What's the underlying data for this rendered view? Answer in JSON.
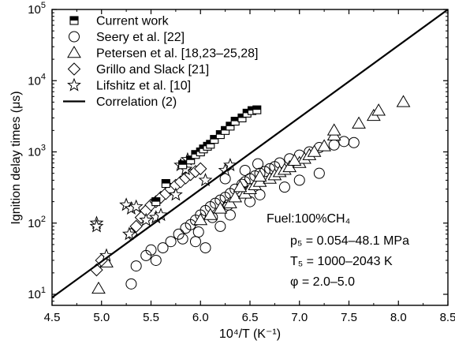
{
  "chart_data": {
    "type": "scatter",
    "xlabel": "10⁴/T (K⁻¹)",
    "ylabel": "Ignition delay times (μs)",
    "xlim": [
      4.5,
      8.5
    ],
    "ylim": [
      7,
      100000
    ],
    "yscale": "log",
    "grid": false,
    "legend_position": "top-left",
    "x_ticks": [
      "4.5",
      "5.0",
      "5.5",
      "6.0",
      "6.5",
      "7.0",
      "7.5",
      "8.0",
      "8.5"
    ],
    "y_ticks": [
      {
        "base": "10",
        "exp": "1"
      },
      {
        "base": "10",
        "exp": "2"
      },
      {
        "base": "10",
        "exp": "3"
      },
      {
        "base": "10",
        "exp": "4"
      },
      {
        "base": "10",
        "exp": "5"
      }
    ],
    "annotations": {
      "fuel": "Fuel:100%CH₄",
      "pressure": "p₅ = 0.054–48.1 MPa",
      "temperature": "T₅ = 1000–2043 K",
      "phi": "φ = 2.0–5.0"
    },
    "series": [
      {
        "name": "Current work",
        "marker": "half-filled-square",
        "points": [
          [
            5.55,
            200
          ],
          [
            5.65,
            360
          ],
          [
            5.82,
            660
          ],
          [
            5.9,
            770
          ],
          [
            5.95,
            920
          ],
          [
            6.0,
            1000
          ],
          [
            6.03,
            1100
          ],
          [
            6.07,
            1200
          ],
          [
            6.1,
            1280
          ],
          [
            6.14,
            1500
          ],
          [
            6.2,
            1750
          ],
          [
            6.25,
            2000
          ],
          [
            6.3,
            2300
          ],
          [
            6.35,
            2700
          ],
          [
            6.42,
            3000
          ],
          [
            6.47,
            3500
          ],
          [
            6.52,
            3800
          ],
          [
            6.57,
            3900
          ]
        ]
      },
      {
        "name": "Seery et al. [22]",
        "marker": "circle",
        "points": [
          [
            5.3,
            14
          ],
          [
            5.35,
            25
          ],
          [
            5.45,
            35
          ],
          [
            5.5,
            42
          ],
          [
            5.55,
            30
          ],
          [
            5.62,
            45
          ],
          [
            5.7,
            55
          ],
          [
            5.78,
            70
          ],
          [
            5.82,
            60
          ],
          [
            5.85,
            85
          ],
          [
            5.9,
            95
          ],
          [
            5.95,
            110
          ],
          [
            5.98,
            75
          ],
          [
            6.0,
            130
          ],
          [
            6.05,
            150
          ],
          [
            6.1,
            170
          ],
          [
            6.12,
            120
          ],
          [
            6.15,
            190
          ],
          [
            6.2,
            210
          ],
          [
            6.25,
            230
          ],
          [
            6.28,
            180
          ],
          [
            6.3,
            260
          ],
          [
            6.35,
            300
          ],
          [
            6.4,
            280
          ],
          [
            6.42,
            350
          ],
          [
            6.45,
            380
          ],
          [
            6.5,
            420
          ],
          [
            6.55,
            460
          ],
          [
            6.6,
            500
          ],
          [
            6.65,
            530
          ],
          [
            6.7,
            580
          ],
          [
            6.75,
            620
          ],
          [
            6.8,
            700
          ],
          [
            6.9,
            800
          ],
          [
            7.0,
            900
          ],
          [
            7.1,
            1000
          ],
          [
            7.2,
            1150
          ],
          [
            7.35,
            1250
          ],
          [
            7.45,
            1400
          ],
          [
            7.55,
            1350
          ],
          [
            6.05,
            45
          ],
          [
            5.95,
            55
          ],
          [
            6.2,
            90
          ],
          [
            6.3,
            130
          ],
          [
            6.5,
            200
          ],
          [
            6.6,
            250
          ],
          [
            6.85,
            320
          ],
          [
            7.0,
            400
          ],
          [
            7.2,
            500
          ],
          [
            6.45,
            550
          ],
          [
            6.58,
            680
          ],
          [
            6.25,
            420
          ]
        ]
      },
      {
        "name": "Petersen et al. [18,23–25,28]",
        "marker": "triangle",
        "points": [
          [
            4.97,
            12
          ],
          [
            5.05,
            28
          ],
          [
            6.0,
            110
          ],
          [
            6.1,
            130
          ],
          [
            6.2,
            160
          ],
          [
            6.3,
            190
          ],
          [
            6.35,
            230
          ],
          [
            6.45,
            260
          ],
          [
            6.5,
            300
          ],
          [
            6.55,
            340
          ],
          [
            6.6,
            380
          ],
          [
            6.7,
            420
          ],
          [
            6.75,
            470
          ],
          [
            6.8,
            520
          ],
          [
            6.85,
            560
          ],
          [
            6.9,
            610
          ],
          [
            7.0,
            700
          ],
          [
            7.05,
            800
          ],
          [
            7.1,
            900
          ],
          [
            7.15,
            1000
          ],
          [
            7.25,
            1200
          ],
          [
            7.35,
            1700
          ],
          [
            7.35,
            2000
          ],
          [
            7.6,
            2500
          ],
          [
            7.75,
            3200
          ],
          [
            7.8,
            3800
          ],
          [
            8.05,
            5000
          ],
          [
            6.6,
            450
          ],
          [
            6.4,
            320
          ],
          [
            6.95,
            750
          ]
        ]
      },
      {
        "name": "Grillo and Slack [21]",
        "marker": "diamond",
        "points": [
          [
            4.95,
            22
          ],
          [
            5.0,
            30
          ],
          [
            5.3,
            70
          ],
          [
            5.35,
            90
          ],
          [
            5.4,
            120
          ],
          [
            5.45,
            150
          ],
          [
            5.5,
            180
          ],
          [
            5.55,
            200
          ],
          [
            5.6,
            230
          ],
          [
            5.65,
            260
          ],
          [
            5.7,
            300
          ],
          [
            5.75,
            340
          ],
          [
            5.8,
            380
          ],
          [
            5.85,
            430
          ],
          [
            5.9,
            480
          ],
          [
            5.95,
            530
          ],
          [
            6.0,
            580
          ]
        ]
      },
      {
        "name": "Lifshitz et al. [10]",
        "marker": "star",
        "points": [
          [
            4.95,
            100
          ],
          [
            4.95,
            90
          ],
          [
            5.05,
            35
          ],
          [
            5.25,
            180
          ],
          [
            5.3,
            160
          ],
          [
            5.35,
            170
          ],
          [
            5.28,
            70
          ],
          [
            5.45,
            110
          ],
          [
            5.55,
            120
          ],
          [
            5.6,
            130
          ],
          [
            5.75,
            250
          ],
          [
            5.8,
            650
          ],
          [
            5.85,
            570
          ],
          [
            5.87,
            780
          ],
          [
            6.05,
            400
          ],
          [
            6.25,
            550
          ],
          [
            6.3,
            650
          ]
        ]
      },
      {
        "name": "Correlation (2)",
        "marker": "line",
        "points": [
          [
            4.5,
            9
          ],
          [
            8.5,
            100000
          ]
        ]
      }
    ]
  }
}
